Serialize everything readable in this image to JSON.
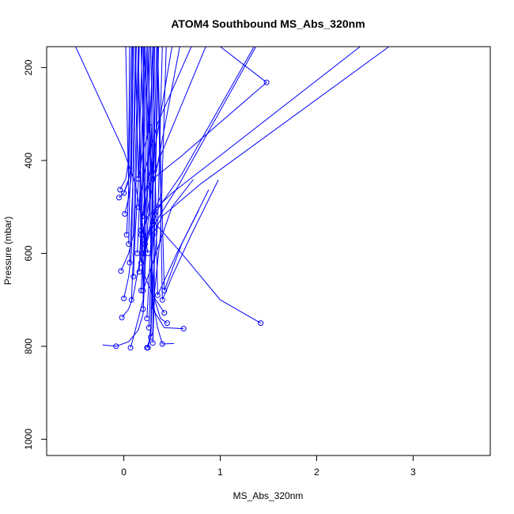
{
  "chart_data": {
    "type": "line",
    "title": "ATOM4 Southbound MS_Abs_320nm",
    "xlabel": "MS_Abs_320nm",
    "ylabel": "Pressure (mbar)",
    "xlim": [
      -0.8,
      3.8
    ],
    "ylim": [
      1035,
      155
    ],
    "y_reversed": true,
    "x_ticks": [
      0,
      1,
      2,
      3
    ],
    "x_tick_labels": [
      "0",
      "1",
      "2",
      "3"
    ],
    "y_ticks": [
      200,
      400,
      600,
      800,
      1000
    ],
    "y_tick_labels": [
      "200",
      "400",
      "600",
      "800",
      "1000"
    ],
    "grid": false,
    "legend": "none",
    "series_color": "#0000ff",
    "series": [
      {
        "points": [
          [
            -0.22,
            797
          ],
          [
            -0.08,
            800
          ],
          [
            0.05,
            790
          ],
          [
            0.15,
            765
          ],
          [
            0.2,
            730
          ],
          [
            0.3,
            155
          ]
        ]
      },
      {
        "points": [
          [
            -0.02,
            738
          ],
          [
            0.05,
            720
          ],
          [
            0.1,
            690
          ],
          [
            0.18,
            600
          ],
          [
            0.22,
            155
          ]
        ]
      },
      {
        "points": [
          [
            0.07,
            803
          ],
          [
            0.1,
            780
          ],
          [
            0.15,
            740
          ],
          [
            0.2,
            700
          ],
          [
            0.25,
            155
          ]
        ]
      },
      {
        "points": [
          [
            0.24,
            803
          ],
          [
            0.26,
            790
          ],
          [
            0.28,
            760
          ],
          [
            0.32,
            155
          ]
        ]
      },
      {
        "points": [
          [
            0.25,
            803
          ],
          [
            0.28,
            780
          ],
          [
            0.3,
            770
          ],
          [
            0.35,
            155
          ]
        ]
      },
      {
        "points": [
          [
            0.52,
            794
          ],
          [
            0.4,
            795
          ],
          [
            0.35,
            760
          ],
          [
            0.3,
            700
          ],
          [
            0.25,
            155
          ]
        ]
      },
      {
        "points": [
          [
            0.62,
            762
          ],
          [
            0.42,
            760
          ],
          [
            0.3,
            720
          ],
          [
            0.22,
            155
          ]
        ]
      },
      {
        "points": [
          [
            0.45,
            750
          ],
          [
            0.38,
            740
          ],
          [
            0.32,
            700
          ],
          [
            0.28,
            155
          ]
        ]
      },
      {
        "points": [
          [
            1.42,
            750
          ],
          [
            1.0,
            700
          ],
          [
            0.6,
            600
          ],
          [
            0.3,
            530
          ],
          [
            0.25,
            155
          ]
        ]
      },
      {
        "points": [
          [
            0.42,
            728
          ],
          [
            0.3,
            690
          ],
          [
            0.22,
            650
          ],
          [
            0.2,
            155
          ]
        ]
      },
      {
        "points": [
          [
            -0.03,
            638
          ],
          [
            0.05,
            600
          ],
          [
            0.1,
            560
          ],
          [
            0.15,
            155
          ]
        ]
      },
      {
        "points": [
          [
            0.0,
            697
          ],
          [
            0.05,
            650
          ],
          [
            0.08,
            600
          ],
          [
            0.12,
            155
          ]
        ]
      },
      {
        "points": [
          [
            -0.05,
            480
          ],
          [
            0.0,
            470
          ],
          [
            0.05,
            440
          ],
          [
            0.08,
            155
          ]
        ]
      },
      {
        "points": [
          [
            -0.04,
            463
          ],
          [
            0.02,
            440
          ],
          [
            0.05,
            400
          ],
          [
            0.06,
            155
          ]
        ]
      },
      {
        "points": [
          [
            0.01,
            515
          ],
          [
            0.05,
            480
          ],
          [
            0.08,
            430
          ],
          [
            0.1,
            155
          ]
        ]
      },
      {
        "points": [
          [
            0.0,
            470
          ],
          [
            0.04,
            450
          ],
          [
            0.07,
            420
          ],
          [
            0.09,
            155
          ]
        ]
      },
      {
        "points": [
          [
            0.72,
            441
          ],
          [
            0.5,
            500
          ],
          [
            0.3,
            620
          ],
          [
            0.2,
            680
          ],
          [
            0.15,
            155
          ]
        ]
      },
      {
        "points": [
          [
            0.98,
            442
          ],
          [
            0.7,
            560
          ],
          [
            0.5,
            650
          ],
          [
            0.4,
            700
          ],
          [
            0.35,
            155
          ]
        ]
      },
      {
        "points": [
          [
            0.88,
            463
          ],
          [
            0.6,
            580
          ],
          [
            0.42,
            680
          ],
          [
            0.35,
            155
          ]
        ]
      },
      {
        "points": [
          [
            0.78,
            506
          ],
          [
            0.55,
            600
          ],
          [
            0.35,
            690
          ],
          [
            0.3,
            155
          ]
        ]
      },
      {
        "points": [
          [
            0.4,
            467
          ],
          [
            0.3,
            520
          ],
          [
            0.22,
            580
          ],
          [
            0.18,
            155
          ]
        ]
      },
      {
        "points": [
          [
            0.35,
            510
          ],
          [
            0.25,
            560
          ],
          [
            0.18,
            620
          ],
          [
            0.15,
            155
          ]
        ]
      },
      {
        "points": [
          [
            1.48,
            232
          ],
          [
            1.0,
            155
          ]
        ]
      },
      {
        "points": [
          [
            1.48,
            232
          ],
          [
            0.6,
            390
          ],
          [
            0.3,
            440
          ],
          [
            0.2,
            155
          ]
        ]
      },
      {
        "points": [
          [
            -0.5,
            155
          ],
          [
            0.0,
            380
          ],
          [
            0.12,
            450
          ],
          [
            0.18,
            520
          ],
          [
            0.25,
            600
          ]
        ]
      },
      {
        "points": [
          [
            2.45,
            155
          ],
          [
            0.5,
            470
          ],
          [
            0.25,
            520
          ],
          [
            0.18,
            560
          ]
        ]
      },
      {
        "points": [
          [
            2.75,
            155
          ],
          [
            0.8,
            450
          ],
          [
            0.4,
            520
          ],
          [
            0.3,
            560
          ]
        ]
      },
      {
        "points": [
          [
            1.35,
            155
          ],
          [
            0.6,
            430
          ],
          [
            0.3,
            520
          ],
          [
            0.22,
            580
          ]
        ]
      },
      {
        "points": [
          [
            1.37,
            155
          ],
          [
            0.55,
            460
          ],
          [
            0.28,
            550
          ],
          [
            0.2,
            600
          ]
        ]
      },
      {
        "points": [
          [
            0.85,
            155
          ],
          [
            0.4,
            380
          ],
          [
            0.25,
            460
          ],
          [
            0.2,
            520
          ]
        ]
      },
      {
        "points": [
          [
            0.7,
            155
          ],
          [
            0.35,
            320
          ],
          [
            0.22,
            420
          ],
          [
            0.15,
            500
          ]
        ]
      },
      {
        "points": [
          [
            0.28,
            322
          ],
          [
            0.2,
            380
          ],
          [
            0.15,
            440
          ],
          [
            0.12,
            155
          ]
        ]
      },
      {
        "points": [
          [
            0.16,
            155
          ],
          [
            0.12,
            500
          ],
          [
            0.1,
            600
          ],
          [
            0.08,
            700
          ]
        ]
      },
      {
        "points": [
          [
            0.19,
            155
          ],
          [
            0.15,
            450
          ],
          [
            0.12,
            550
          ],
          [
            0.1,
            650
          ]
        ]
      },
      {
        "points": [
          [
            0.21,
            155
          ],
          [
            0.18,
            400
          ],
          [
            0.16,
            500
          ],
          [
            0.14,
            600
          ]
        ]
      },
      {
        "points": [
          [
            0.24,
            155
          ],
          [
            0.2,
            430
          ],
          [
            0.18,
            530
          ],
          [
            0.16,
            640
          ]
        ]
      },
      {
        "points": [
          [
            0.27,
            155
          ],
          [
            0.24,
            470
          ],
          [
            0.2,
            570
          ],
          [
            0.18,
            680
          ]
        ]
      },
      {
        "points": [
          [
            0.13,
            155
          ],
          [
            0.1,
            420
          ],
          [
            0.08,
            520
          ],
          [
            0.06,
            620
          ]
        ]
      },
      {
        "points": [
          [
            0.31,
            155
          ],
          [
            0.27,
            480
          ],
          [
            0.23,
            590
          ],
          [
            0.2,
            720
          ]
        ]
      },
      {
        "points": [
          [
            0.34,
            155
          ],
          [
            0.3,
            500
          ],
          [
            0.27,
            620
          ],
          [
            0.24,
            740
          ]
        ]
      },
      {
        "points": [
          [
            0.36,
            155
          ],
          [
            0.32,
            520
          ],
          [
            0.28,
            640
          ],
          [
            0.26,
            760
          ]
        ]
      },
      {
        "points": [
          [
            0.4,
            155
          ],
          [
            0.35,
            540
          ],
          [
            0.3,
            660
          ],
          [
            0.28,
            780
          ]
        ]
      },
      {
        "points": [
          [
            0.44,
            155
          ],
          [
            0.38,
            560
          ],
          [
            0.32,
            680
          ],
          [
            0.3,
            793
          ]
        ]
      },
      {
        "points": [
          [
            0.1,
            155
          ],
          [
            0.08,
            380
          ],
          [
            0.06,
            480
          ],
          [
            0.05,
            580
          ]
        ]
      },
      {
        "points": [
          [
            0.02,
            155
          ],
          [
            0.04,
            360
          ],
          [
            0.05,
            460
          ],
          [
            0.03,
            560
          ]
        ]
      },
      {
        "points": [
          [
            0.5,
            155
          ],
          [
            0.3,
            400
          ],
          [
            0.22,
            470
          ],
          [
            0.18,
            550
          ]
        ]
      },
      {
        "points": [
          [
            0.58,
            155
          ],
          [
            0.34,
            420
          ],
          [
            0.26,
            490
          ],
          [
            0.2,
            560
          ]
        ]
      }
    ]
  }
}
